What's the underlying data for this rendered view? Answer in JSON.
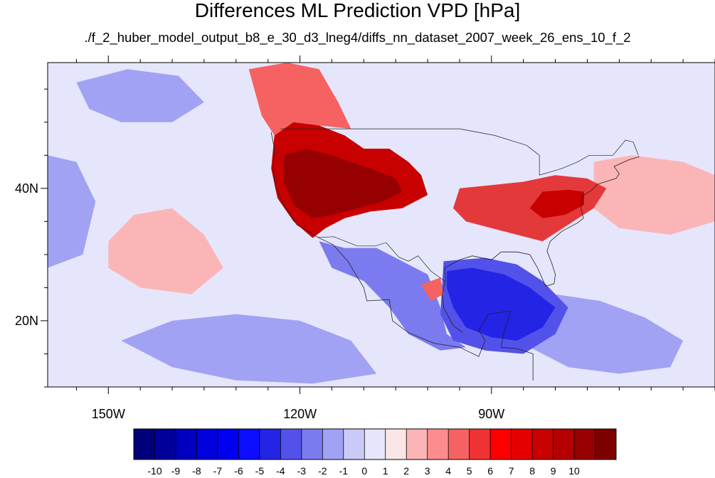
{
  "title": "Differences ML Prediction VPD [hPa]",
  "subtitle": "./f_2_huber_model_output_b8_e_30_d3_lneg4/diffs_nn_dataset_2007_week_26_ens_10_f_2",
  "map": {
    "lon_range": [
      -159.5,
      -55
    ],
    "lat_range": [
      10,
      59
    ],
    "lon_ticks": [
      {
        "value": -150,
        "label": "150W"
      },
      {
        "value": -120,
        "label": "120W"
      },
      {
        "value": -90,
        "label": "90W"
      }
    ],
    "lat_ticks": [
      {
        "value": 40,
        "label": "40N"
      },
      {
        "value": 20,
        "label": "20N"
      }
    ],
    "lon_minor_step": 5,
    "lat_minor_step": 5,
    "background_color": "#e5e6fb",
    "warm_regions": [
      {
        "name": "western-us",
        "color": "#c80000",
        "points": [
          [
            -124,
            48
          ],
          [
            -121,
            50
          ],
          [
            -117,
            49.5
          ],
          [
            -113,
            48
          ],
          [
            -110,
            46
          ],
          [
            -106,
            46
          ],
          [
            -103,
            44
          ],
          [
            -101,
            42
          ],
          [
            -100,
            39
          ],
          [
            -104,
            37
          ],
          [
            -109,
            36.5
          ],
          [
            -113,
            35.5
          ],
          [
            -116,
            34
          ],
          [
            -118,
            32.5
          ],
          [
            -121,
            35
          ],
          [
            -123.5,
            38.5
          ],
          [
            -124.5,
            43
          ]
        ]
      },
      {
        "name": "western-us-core",
        "color": "#960000",
        "points": [
          [
            -122.5,
            45
          ],
          [
            -119,
            46
          ],
          [
            -115,
            45
          ],
          [
            -112,
            44
          ],
          [
            -109,
            43
          ],
          [
            -105,
            41.5
          ],
          [
            -104,
            39.5
          ],
          [
            -107,
            38
          ],
          [
            -111,
            37
          ],
          [
            -115,
            36
          ],
          [
            -118,
            35.5
          ],
          [
            -121,
            37.5
          ],
          [
            -122.5,
            41
          ]
        ]
      },
      {
        "name": "eastern-us",
        "color": "#e4393b",
        "points": [
          [
            -95,
            40
          ],
          [
            -90,
            40.5
          ],
          [
            -85,
            41
          ],
          [
            -80,
            42
          ],
          [
            -75,
            41.5
          ],
          [
            -72,
            40
          ],
          [
            -74,
            37
          ],
          [
            -78,
            34.5
          ],
          [
            -82,
            32
          ],
          [
            -86,
            33
          ],
          [
            -90,
            34
          ],
          [
            -94,
            35
          ],
          [
            -96,
            37
          ]
        ]
      },
      {
        "name": "eastern-us-core",
        "color": "#c80000",
        "points": [
          [
            -82,
            39.5
          ],
          [
            -78,
            39.8
          ],
          [
            -75.5,
            39.5
          ],
          [
            -75.5,
            37.5
          ],
          [
            -78.5,
            36
          ],
          [
            -82,
            35.5
          ],
          [
            -84,
            37
          ]
        ]
      },
      {
        "name": "pacific-nw-plume",
        "color": "#f66262",
        "points": [
          [
            -128,
            58
          ],
          [
            -122,
            59
          ],
          [
            -117,
            58
          ],
          [
            -114,
            53
          ],
          [
            -112,
            49
          ],
          [
            -117,
            49.5
          ],
          [
            -121,
            50
          ],
          [
            -124,
            48
          ],
          [
            -126,
            51
          ]
        ]
      },
      {
        "name": "atlantic-plume",
        "color": "#fcb5b6",
        "points": [
          [
            -74,
            44
          ],
          [
            -68,
            45
          ],
          [
            -60,
            44
          ],
          [
            -55,
            42
          ],
          [
            -55,
            35
          ],
          [
            -62,
            33
          ],
          [
            -70,
            34
          ],
          [
            -74,
            37
          ]
        ]
      },
      {
        "name": "pacific-pink-band",
        "color": "#fcb5b6",
        "points": [
          [
            -150,
            32
          ],
          [
            -146,
            36
          ],
          [
            -140,
            37
          ],
          [
            -135,
            33
          ],
          [
            -132,
            28
          ],
          [
            -137,
            24
          ],
          [
            -145,
            25
          ],
          [
            -150,
            28
          ]
        ]
      },
      {
        "name": "gulf-warm-spot",
        "color": "#f66262",
        "points": [
          [
            -101,
            25.5
          ],
          [
            -98,
            26.5
          ],
          [
            -97.5,
            24
          ],
          [
            -99.5,
            23
          ]
        ]
      }
    ],
    "cool_regions": [
      {
        "name": "mexico",
        "color": "#7b7bef",
        "points": [
          [
            -117,
            32
          ],
          [
            -113,
            31
          ],
          [
            -108,
            31
          ],
          [
            -104,
            29
          ],
          [
            -100,
            27
          ],
          [
            -98,
            22
          ],
          [
            -97,
            18
          ],
          [
            -94,
            16
          ],
          [
            -98,
            15.5
          ],
          [
            -103,
            18
          ],
          [
            -106,
            22
          ],
          [
            -110,
            26
          ],
          [
            -115,
            28
          ]
        ]
      },
      {
        "name": "gulf-core",
        "color": "#2424e6",
        "points": [
          [
            -97,
            27.5
          ],
          [
            -93,
            28
          ],
          [
            -88,
            27
          ],
          [
            -84,
            25
          ],
          [
            -80,
            22
          ],
          [
            -82,
            19
          ],
          [
            -86,
            17
          ],
          [
            -90,
            17.5
          ],
          [
            -94,
            19
          ],
          [
            -96,
            22
          ],
          [
            -97,
            25
          ]
        ]
      },
      {
        "name": "gulf-mexico",
        "color": "#5252eb",
        "points": [
          [
            -97.5,
            29
          ],
          [
            -91,
            29.5
          ],
          [
            -86,
            28.5
          ],
          [
            -82,
            26
          ],
          [
            -78,
            22
          ],
          [
            -80,
            18
          ],
          [
            -85,
            15
          ],
          [
            -91,
            15.5
          ],
          [
            -96,
            17
          ],
          [
            -98,
            21
          ]
        ]
      },
      {
        "name": "caribbean",
        "color": "#a2a2f4",
        "points": [
          [
            -86,
            22
          ],
          [
            -80,
            24
          ],
          [
            -73,
            23
          ],
          [
            -66,
            20.5
          ],
          [
            -60,
            17
          ],
          [
            -62,
            13
          ],
          [
            -70,
            12
          ],
          [
            -78,
            13
          ],
          [
            -84,
            16
          ]
        ]
      },
      {
        "name": "pacific-tropics",
        "color": "#a2a2f4",
        "points": [
          [
            -140,
            20
          ],
          [
            -130,
            21
          ],
          [
            -120,
            20
          ],
          [
            -112,
            17
          ],
          [
            -108,
            12
          ],
          [
            -118,
            10.5
          ],
          [
            -130,
            11
          ],
          [
            -140,
            13
          ],
          [
            -148,
            17
          ]
        ]
      },
      {
        "name": "pacific-north",
        "color": "#a2a2f4",
        "points": [
          [
            -155,
            56
          ],
          [
            -147,
            58
          ],
          [
            -139,
            57
          ],
          [
            -135,
            53
          ],
          [
            -140,
            50
          ],
          [
            -148,
            50
          ],
          [
            -153,
            52
          ]
        ]
      },
      {
        "name": "pacific-west",
        "color": "#a2a2f4",
        "points": [
          [
            -159.5,
            45
          ],
          [
            -155,
            44
          ],
          [
            -152,
            38
          ],
          [
            -154,
            30
          ],
          [
            -159.5,
            28
          ]
        ]
      }
    ]
  },
  "colorbar": {
    "colors": [
      "#00007a",
      "#00009b",
      "#0000c0",
      "#0000dc",
      "#0000f0",
      "#0c0cff",
      "#2424e6",
      "#5252eb",
      "#7b7bef",
      "#a2a2f4",
      "#cacaf8",
      "#e5e6fb",
      "#fbe6e7",
      "#fcb5b6",
      "#fc8c8d",
      "#f66262",
      "#ef3333",
      "#ff0000",
      "#e40000",
      "#c80000",
      "#b40000",
      "#960000",
      "#7c0000"
    ],
    "labels": [
      "-10",
      "-9",
      "-8",
      "-7",
      "-6",
      "-5",
      "-4",
      "-3",
      "-2",
      "-1",
      "0",
      "1",
      "2",
      "3",
      "4",
      "5",
      "6",
      "7",
      "8",
      "9",
      "10"
    ]
  }
}
